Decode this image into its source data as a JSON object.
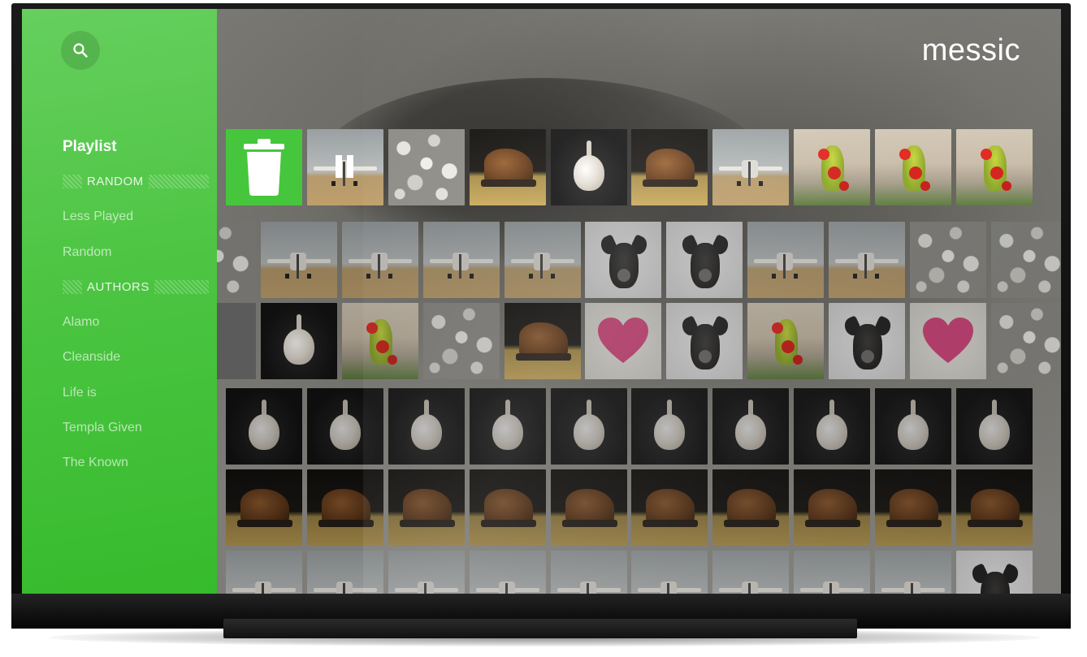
{
  "app": {
    "title": "messic"
  },
  "search": {
    "icon": "search-icon"
  },
  "sidebar": {
    "items": [
      {
        "type": "item",
        "label": "Playlist",
        "active": true
      },
      {
        "type": "header",
        "label": "RANDOM"
      },
      {
        "type": "item",
        "label": "Less Played"
      },
      {
        "type": "item",
        "label": "Random"
      },
      {
        "type": "header",
        "label": "AUTHORS"
      },
      {
        "type": "item",
        "label": "Alamo"
      },
      {
        "type": "item",
        "label": "Cleanside"
      },
      {
        "type": "item",
        "label": "Life is"
      },
      {
        "type": "item",
        "label": "Templa Given"
      },
      {
        "type": "item",
        "label": "The Known"
      }
    ]
  },
  "grid": {
    "rows": [
      [
        "trash",
        "plane-paused",
        "stones",
        "boot",
        "garlic",
        "boot",
        "plane",
        "frog",
        "frog",
        "frog"
      ],
      [
        "stones",
        "plane",
        "plane",
        "plane",
        "plane",
        "dog",
        "dog",
        "plane",
        "plane",
        "stones",
        "stones"
      ],
      [
        "blank",
        "garlic",
        "frog",
        "stones",
        "boot",
        "heart",
        "dog",
        "frog",
        "dog",
        "heart",
        "stones"
      ],
      [
        "garlic",
        "garlic",
        "garlic",
        "garlic",
        "garlic",
        "garlic",
        "garlic",
        "garlic",
        "garlic",
        "garlic"
      ],
      [
        "boot",
        "boot",
        "boot",
        "boot",
        "boot",
        "boot",
        "boot",
        "boot",
        "boot",
        "boot"
      ],
      [
        "plane",
        "plane",
        "plane",
        "plane",
        "plane",
        "plane",
        "plane",
        "plane",
        "plane",
        "dog"
      ]
    ]
  },
  "colors": {
    "accent": "#46c63c",
    "sidebar_top": "#66cf5e",
    "sidebar_bottom": "#36bb2c"
  }
}
